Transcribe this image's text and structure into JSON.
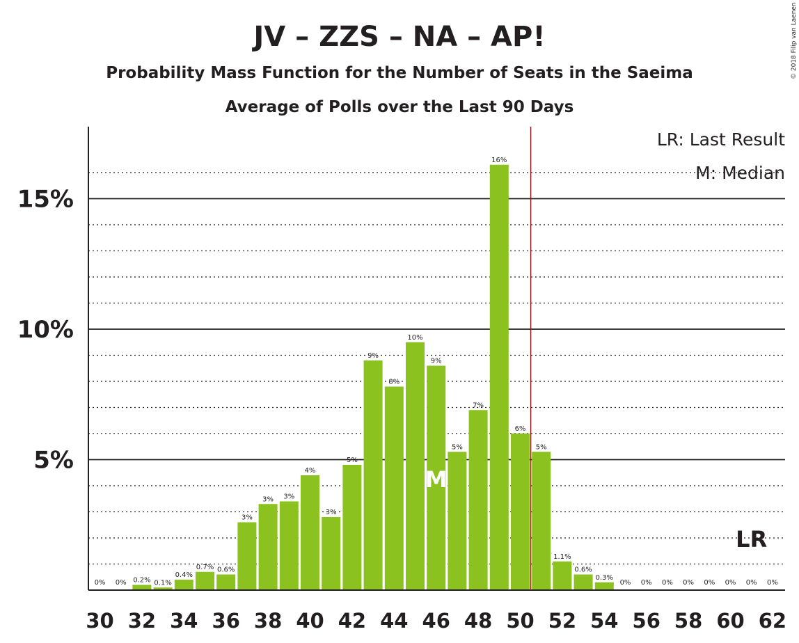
{
  "header": {
    "title": "JV – ZZS – NA – AP!",
    "subtitle1": "Probability Mass Function for the Number of Seats in the Saeima",
    "subtitle2": "Average of Polls over the Last 90 Days",
    "copyright": "© 2018 Filip van Laenen"
  },
  "legend": {
    "last_result": "LR: Last Result",
    "median": "M: Median"
  },
  "markers": {
    "lr_label": "LR",
    "median_label": "M"
  },
  "colors": {
    "bar": "#8bc21f",
    "text": "#231f20",
    "majority_line": "#8b1a1a"
  },
  "chart_data": {
    "type": "bar",
    "x": [
      30,
      31,
      32,
      33,
      34,
      35,
      36,
      37,
      38,
      39,
      40,
      41,
      42,
      43,
      44,
      45,
      46,
      47,
      48,
      49,
      50,
      51,
      52,
      53,
      54,
      55,
      56,
      57,
      58,
      59,
      60,
      61,
      62
    ],
    "values": [
      0,
      0,
      0.2,
      0.1,
      0.4,
      0.7,
      0.6,
      2.6,
      3.3,
      3.4,
      4.4,
      2.8,
      4.8,
      8.8,
      7.8,
      9.5,
      8.6,
      5.3,
      6.9,
      16.3,
      6.0,
      5.3,
      1.1,
      0.6,
      0.3,
      0,
      0,
      0,
      0,
      0,
      0,
      0,
      0
    ],
    "data_labels": [
      "0%",
      "0%",
      "0.2%",
      "0.1%",
      "0.4%",
      "0.7%",
      "0.6%",
      "3%",
      "3%",
      "3%",
      "4%",
      "3%",
      "5%",
      "9%",
      "8%",
      "10%",
      "9%",
      "5%",
      "7%",
      "16%",
      "6%",
      "5%",
      "1.1%",
      "0.6%",
      "0.3%",
      "0%",
      "0%",
      "0%",
      "0%",
      "0%",
      "0%",
      "0%",
      "0%"
    ],
    "x_tick_labels": [
      "30",
      "32",
      "34",
      "36",
      "38",
      "40",
      "42",
      "44",
      "46",
      "48",
      "50",
      "52",
      "54",
      "56",
      "58",
      "60",
      "62"
    ],
    "y_tick_labels": [
      "5%",
      "10%",
      "15%"
    ],
    "y_ticks": [
      5,
      10,
      15
    ],
    "ylim": [
      0,
      17.8
    ],
    "xlim": [
      30,
      62
    ],
    "median_seat": 46,
    "majority_line_seat": 50.5,
    "last_result_seat": 61,
    "grid": true,
    "legend_position": "top-right"
  }
}
